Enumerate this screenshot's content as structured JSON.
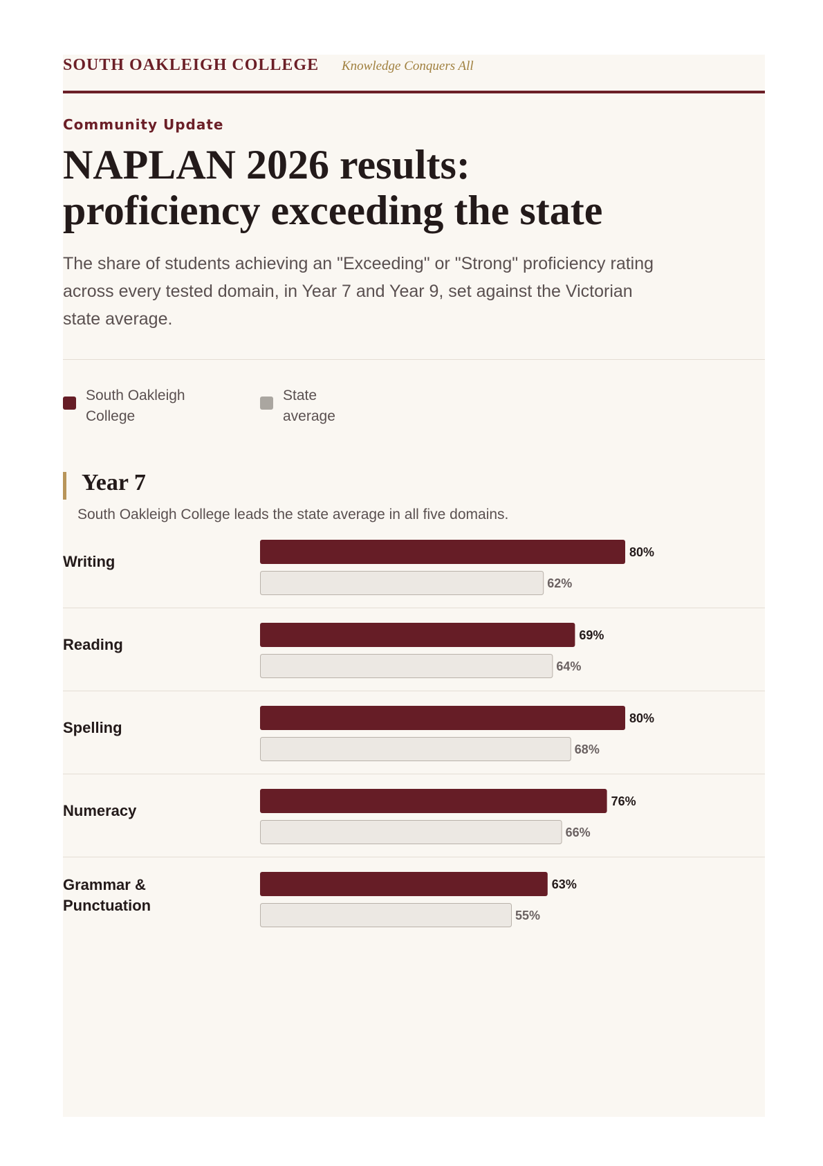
{
  "header": {
    "school": "SOUTH OAKLEIGH COLLEGE",
    "motto": "Knowledge Conquers All"
  },
  "kicker": "Community Update",
  "headline": {
    "line1": "NAPLAN 2026 results:",
    "line2": "proficiency exceeding the state"
  },
  "lede": "The share of students achieving an \"Exceeding\" or \"Strong\" proficiency rating across every tested domain, in Year 7 and Year 9, set against the Victorian state average.",
  "legend": {
    "school_label_line1": "South Oakleigh",
    "school_label_line2": "College",
    "state_label_line1": "State",
    "state_label_line2": "average"
  },
  "colors": {
    "school": "#661d26",
    "state_fill": "#ece8e3",
    "state_stroke": "#b9b2aa",
    "state_swatch": "#aaa6a0",
    "school_value_text": "#231a1a",
    "state_value_text": "#6b6262"
  },
  "section": {
    "title": "Year 7",
    "note": "South Oakleigh College leads the state average in all five domains."
  },
  "chart_data": {
    "type": "bar",
    "orientation": "horizontal",
    "categories": [
      [
        "Writing"
      ],
      [
        "Reading"
      ],
      [
        "Spelling"
      ],
      [
        "Numeracy"
      ],
      [
        "Grammar &",
        "Punctuation"
      ]
    ],
    "series": [
      {
        "name": "South Oakleigh College",
        "values": [
          80,
          69,
          80,
          76,
          63
        ],
        "labels": [
          "80%",
          "69%",
          "80%",
          "76%",
          "63%"
        ]
      },
      {
        "name": "State average",
        "values": [
          62,
          64,
          68,
          66,
          55
        ],
        "labels": [
          "62%",
          "64%",
          "68%",
          "66%",
          "55%"
        ]
      }
    ],
    "xlim": [
      0,
      100
    ],
    "unit": "%",
    "grid": false
  }
}
